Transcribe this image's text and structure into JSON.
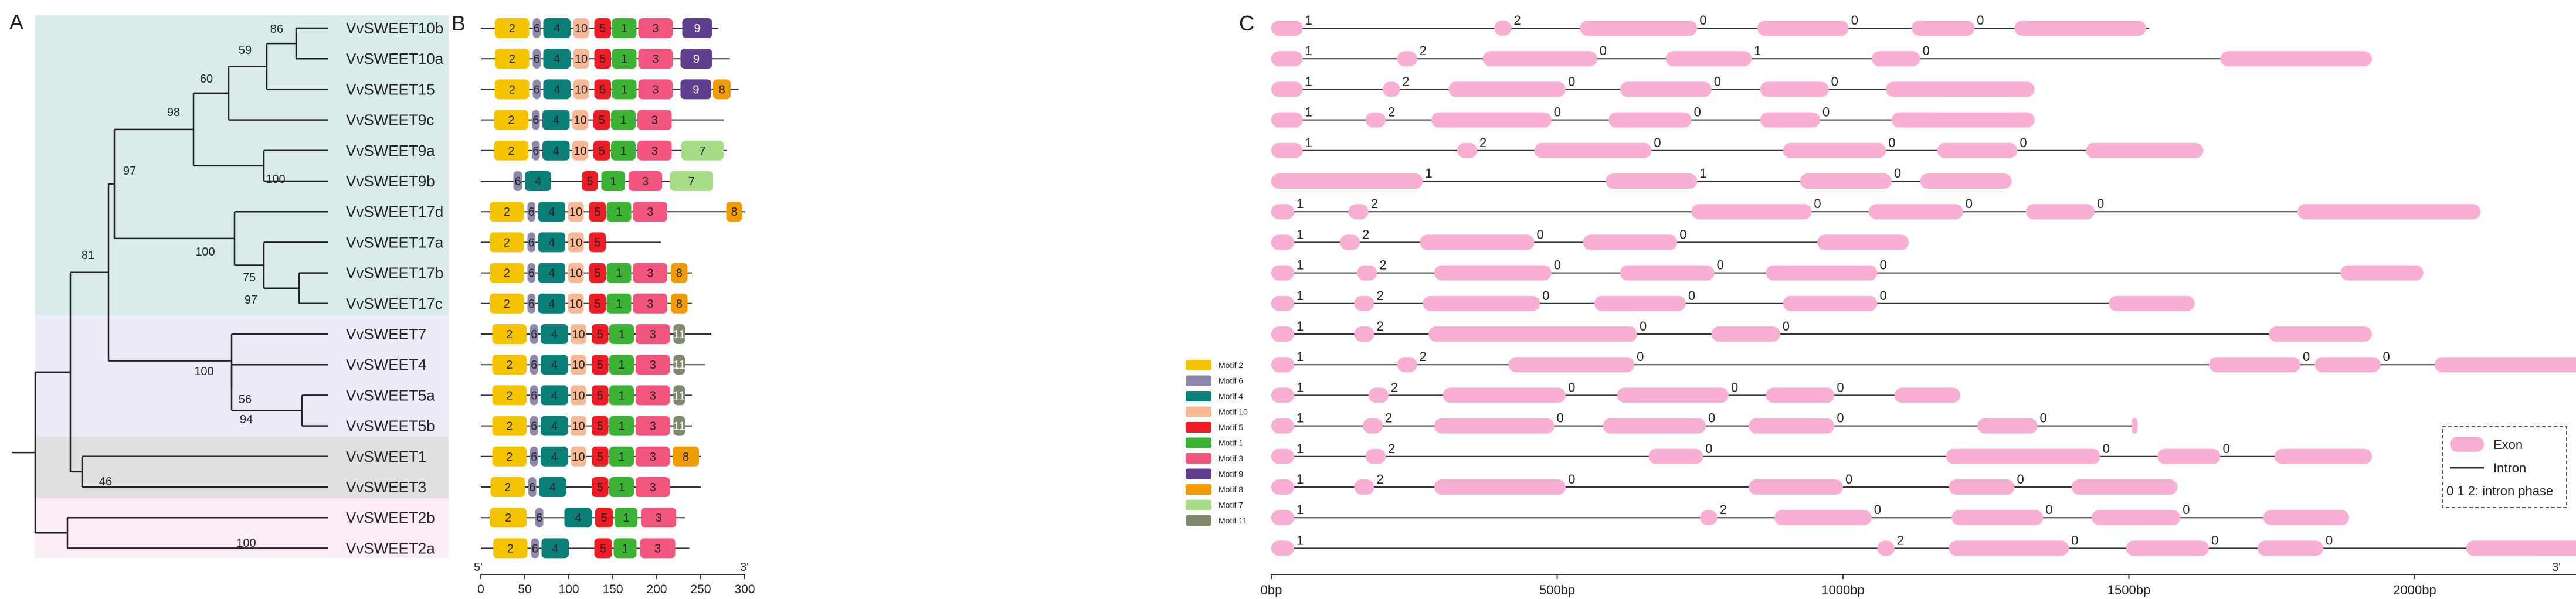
{
  "panels": {
    "a": "A",
    "b": "B",
    "c": "C"
  },
  "colors": {
    "cladeTeal": "#daebeb",
    "cladeBlue": "#ececf8",
    "cladeGray": "#e0e0e0",
    "cladePink": "#fbecf5",
    "exon": "#f9afd4",
    "intron": "#333333"
  },
  "tree": {
    "leaves": [
      "VvSWEET10b",
      "VvSWEET10a",
      "VvSWEET15",
      "VvSWEET9c",
      "VvSWEET9a",
      "VvSWEET9b",
      "VvSWEET17d",
      "VvSWEET17a",
      "VvSWEET17b",
      "VvSWEET17c",
      "VvSWEET7",
      "VvSWEET4",
      "VvSWEET5a",
      "VvSWEET5b",
      "VvSWEET1",
      "VvSWEET3",
      "VvSWEET2b",
      "VvSWEET2a"
    ],
    "bootstraps": [
      "86",
      "59",
      "60",
      "98",
      "100",
      "97",
      "100",
      "75",
      "97",
      "81",
      "100",
      "56",
      "94",
      "46",
      "100"
    ]
  },
  "motif_legend": [
    {
      "id": "2",
      "label": "Motif 2",
      "color": "#f5c400"
    },
    {
      "id": "6",
      "label": "Motif 6",
      "color": "#8e88ad"
    },
    {
      "id": "4",
      "label": "Motif 4",
      "color": "#0a7f78"
    },
    {
      "id": "10",
      "label": "Motif 10",
      "color": "#f7b896"
    },
    {
      "id": "5",
      "label": "Motif 5",
      "color": "#ee1c24"
    },
    {
      "id": "1",
      "label": "Motif 1",
      "color": "#3db335"
    },
    {
      "id": "3",
      "label": "Motif 3",
      "color": "#f2557d"
    },
    {
      "id": "9",
      "label": "Motif 9",
      "color": "#5f3f8d"
    },
    {
      "id": "8",
      "label": "Motif 8",
      "color": "#f29b00"
    },
    {
      "id": "7",
      "label": "Motif 7",
      "color": "#a6dc85"
    },
    {
      "id": "11",
      "label": "Motif 11",
      "color": "#7f8a6c"
    }
  ],
  "motif_axis": {
    "ticks": [
      "0",
      "50",
      "100",
      "150",
      "200",
      "250",
      "300"
    ],
    "five": "5'",
    "three": "3'"
  },
  "motifs": [
    {
      "len": 270,
      "m": [
        [
          16,
          55,
          "2"
        ],
        [
          59,
          68,
          "6"
        ],
        [
          71,
          102,
          "4"
        ],
        [
          105,
          123,
          "10"
        ],
        [
          129,
          148,
          "5"
        ],
        [
          149,
          177,
          "1"
        ],
        [
          179,
          218,
          "3"
        ],
        [
          229,
          263,
          "9"
        ]
      ]
    },
    {
      "len": 283,
      "m": [
        [
          16,
          55,
          "2"
        ],
        [
          59,
          68,
          "6"
        ],
        [
          71,
          102,
          "4"
        ],
        [
          105,
          123,
          "10"
        ],
        [
          129,
          148,
          "5"
        ],
        [
          149,
          177,
          "1"
        ],
        [
          179,
          218,
          "3"
        ],
        [
          227,
          263,
          "9"
        ]
      ]
    },
    {
      "len": 293,
      "m": [
        [
          16,
          55,
          "2"
        ],
        [
          59,
          68,
          "6"
        ],
        [
          71,
          102,
          "4"
        ],
        [
          105,
          123,
          "10"
        ],
        [
          129,
          148,
          "5"
        ],
        [
          149,
          177,
          "1"
        ],
        [
          179,
          218,
          "3"
        ],
        [
          227,
          262,
          "9"
        ],
        [
          264,
          284,
          "8"
        ]
      ]
    },
    {
      "len": 276,
      "m": [
        [
          15,
          54,
          "2"
        ],
        [
          58,
          67,
          "6"
        ],
        [
          70,
          101,
          "4"
        ],
        [
          104,
          122,
          "10"
        ],
        [
          128,
          147,
          "5"
        ],
        [
          148,
          176,
          "1"
        ],
        [
          178,
          217,
          "3"
        ]
      ]
    },
    {
      "len": 280,
      "m": [
        [
          15,
          54,
          "2"
        ],
        [
          58,
          67,
          "6"
        ],
        [
          70,
          101,
          "4"
        ],
        [
          104,
          122,
          "10"
        ],
        [
          128,
          147,
          "5"
        ],
        [
          148,
          176,
          "1"
        ],
        [
          178,
          217,
          "3"
        ],
        [
          228,
          276,
          "7"
        ]
      ]
    },
    {
      "len": 263,
      "m": [
        [
          37,
          47,
          "6"
        ],
        [
          50,
          80,
          "4"
        ],
        [
          115,
          133,
          "5"
        ],
        [
          137,
          164,
          "1"
        ],
        [
          168,
          206,
          "3"
        ],
        [
          215,
          264,
          "7"
        ]
      ]
    },
    {
      "len": 300,
      "m": [
        [
          10,
          49,
          "2"
        ],
        [
          53,
          62,
          "6"
        ],
        [
          65,
          96,
          "4"
        ],
        [
          99,
          117,
          "10"
        ],
        [
          123,
          142,
          "5"
        ],
        [
          143,
          171,
          "1"
        ],
        [
          173,
          212,
          "3"
        ],
        [
          279,
          297,
          "8"
        ]
      ]
    },
    {
      "len": 205,
      "m": [
        [
          10,
          49,
          "2"
        ],
        [
          53,
          62,
          "6"
        ],
        [
          65,
          96,
          "4"
        ],
        [
          99,
          117,
          "10"
        ],
        [
          123,
          142,
          "5"
        ]
      ]
    },
    {
      "len": 240,
      "m": [
        [
          10,
          49,
          "2"
        ],
        [
          53,
          62,
          "6"
        ],
        [
          65,
          96,
          "4"
        ],
        [
          99,
          117,
          "10"
        ],
        [
          123,
          142,
          "5"
        ],
        [
          143,
          171,
          "1"
        ],
        [
          173,
          212,
          "3"
        ],
        [
          216,
          235,
          "8"
        ]
      ]
    },
    {
      "len": 240,
      "m": [
        [
          10,
          49,
          "2"
        ],
        [
          53,
          62,
          "6"
        ],
        [
          65,
          96,
          "4"
        ],
        [
          99,
          117,
          "10"
        ],
        [
          123,
          142,
          "5"
        ],
        [
          143,
          171,
          "1"
        ],
        [
          173,
          212,
          "3"
        ],
        [
          216,
          235,
          "8"
        ]
      ]
    },
    {
      "len": 262,
      "m": [
        [
          13,
          52,
          "2"
        ],
        [
          56,
          65,
          "6"
        ],
        [
          68,
          99,
          "4"
        ],
        [
          102,
          120,
          "10"
        ],
        [
          126,
          145,
          "5"
        ],
        [
          146,
          174,
          "1"
        ],
        [
          176,
          215,
          "3"
        ],
        [
          219,
          232,
          "11"
        ]
      ]
    },
    {
      "len": 255,
      "m": [
        [
          13,
          52,
          "2"
        ],
        [
          56,
          65,
          "6"
        ],
        [
          68,
          99,
          "4"
        ],
        [
          102,
          120,
          "10"
        ],
        [
          126,
          145,
          "5"
        ],
        [
          146,
          174,
          "1"
        ],
        [
          176,
          215,
          "3"
        ],
        [
          219,
          232,
          "11"
        ]
      ]
    },
    {
      "len": 240,
      "m": [
        [
          13,
          52,
          "2"
        ],
        [
          56,
          65,
          "6"
        ],
        [
          68,
          99,
          "4"
        ],
        [
          102,
          120,
          "10"
        ],
        [
          126,
          145,
          "5"
        ],
        [
          146,
          174,
          "1"
        ],
        [
          176,
          215,
          "3"
        ],
        [
          219,
          232,
          "11"
        ]
      ]
    },
    {
      "len": 240,
      "m": [
        [
          13,
          52,
          "2"
        ],
        [
          56,
          65,
          "6"
        ],
        [
          68,
          99,
          "4"
        ],
        [
          102,
          120,
          "10"
        ],
        [
          126,
          145,
          "5"
        ],
        [
          146,
          174,
          "1"
        ],
        [
          176,
          215,
          "3"
        ],
        [
          219,
          232,
          "11"
        ]
      ]
    },
    {
      "len": 250,
      "m": [
        [
          13,
          52,
          "2"
        ],
        [
          56,
          65,
          "6"
        ],
        [
          68,
          99,
          "4"
        ],
        [
          102,
          120,
          "10"
        ],
        [
          126,
          145,
          "5"
        ],
        [
          146,
          174,
          "1"
        ],
        [
          176,
          215,
          "3"
        ],
        [
          218,
          248,
          "8"
        ]
      ]
    },
    {
      "len": 250,
      "m": [
        [
          11,
          50,
          "2"
        ],
        [
          54,
          63,
          "6"
        ],
        [
          66,
          97,
          "4"
        ],
        [
          126,
          145,
          "5"
        ],
        [
          146,
          174,
          "1"
        ],
        [
          176,
          215,
          "3"
        ]
      ]
    },
    {
      "len": 232,
      "m": [
        [
          10,
          52,
          "2"
        ],
        [
          62,
          71,
          "6"
        ],
        [
          95,
          126,
          "4"
        ],
        [
          130,
          150,
          "5"
        ],
        [
          152,
          178,
          "1"
        ],
        [
          182,
          222,
          "3"
        ]
      ]
    },
    {
      "len": 237,
      "m": [
        [
          14,
          53,
          "2"
        ],
        [
          57,
          66,
          "6"
        ],
        [
          69,
          100,
          "4"
        ],
        [
          129,
          149,
          "5"
        ],
        [
          151,
          177,
          "1"
        ],
        [
          181,
          221,
          "3"
        ]
      ]
    }
  ],
  "gene_legend": {
    "exon": "Exon",
    "intron": "Intron",
    "phase": "0 1 2: intron phase"
  },
  "gene_axis": {
    "ticks": [
      "0bp",
      "500bp",
      "1000bp",
      "1500bp",
      "2000bp"
    ],
    "three": "3'"
  },
  "genes": [
    {
      "len": 1535,
      "ex": [
        [
          0,
          55
        ],
        [
          390,
          420
        ],
        [
          540,
          745
        ],
        [
          850,
          1010
        ],
        [
          1120,
          1230
        ],
        [
          1300,
          1530
        ]
      ],
      "ph": [
        "1",
        "2",
        "0",
        "0",
        "0"
      ]
    },
    {
      "len": 1925,
      "ex": [
        [
          0,
          55
        ],
        [
          220,
          255
        ],
        [
          370,
          570
        ],
        [
          690,
          840
        ],
        [
          1050,
          1135
        ],
        [
          1660,
          1925
        ]
      ],
      "ph": [
        "1",
        "2",
        "0",
        "1",
        "0"
      ]
    },
    {
      "len": 1335,
      "ex": [
        [
          0,
          55
        ],
        [
          195,
          225
        ],
        [
          310,
          515
        ],
        [
          610,
          770
        ],
        [
          855,
          975
        ],
        [
          1075,
          1335
        ]
      ],
      "ph": [
        "1",
        "2",
        "0",
        "0",
        "0"
      ]
    },
    {
      "len": 1335,
      "ex": [
        [
          0,
          55
        ],
        [
          165,
          200
        ],
        [
          280,
          490
        ],
        [
          590,
          735
        ],
        [
          855,
          960
        ],
        [
          1085,
          1335
        ]
      ],
      "ph": [
        "1",
        "2",
        "0",
        "0",
        "0"
      ]
    },
    {
      "len": 1630,
      "ex": [
        [
          0,
          55
        ],
        [
          325,
          360
        ],
        [
          460,
          665
        ],
        [
          895,
          1075
        ],
        [
          1165,
          1305
        ],
        [
          1425,
          1630
        ]
      ],
      "ph": [
        "1",
        "2",
        "0",
        "0",
        "0"
      ]
    },
    {
      "len": 1295,
      "ex": [
        [
          0,
          265
        ],
        [
          585,
          745
        ],
        [
          925,
          1085
        ],
        [
          1135,
          1295
        ]
      ],
      "ph": [
        "1",
        "1",
        "0"
      ]
    },
    {
      "len": 2115,
      "ex": [
        [
          0,
          40
        ],
        [
          135,
          170
        ],
        [
          735,
          945
        ],
        [
          1045,
          1210
        ],
        [
          1320,
          1440
        ],
        [
          1795,
          2115
        ]
      ],
      "ph": [
        "1",
        "2",
        "0",
        "0",
        "0"
      ]
    },
    {
      "len": 1115,
      "ex": [
        [
          0,
          40
        ],
        [
          120,
          155
        ],
        [
          260,
          460
        ],
        [
          545,
          710
        ],
        [
          955,
          1115
        ]
      ],
      "ph": [
        "1",
        "2",
        "0",
        "0"
      ]
    },
    {
      "len": 2015,
      "ex": [
        [
          0,
          40
        ],
        [
          150,
          185
        ],
        [
          285,
          490
        ],
        [
          610,
          775
        ],
        [
          865,
          1060
        ],
        [
          1870,
          2015
        ]
      ],
      "ph": [
        "1",
        "2",
        "0",
        "0",
        "0"
      ]
    },
    {
      "len": 1615,
      "ex": [
        [
          0,
          40
        ],
        [
          145,
          180
        ],
        [
          265,
          470
        ],
        [
          565,
          725
        ],
        [
          895,
          1060
        ],
        [
          1465,
          1615
        ]
      ],
      "ph": [
        "1",
        "2",
        "0",
        "0",
        "0"
      ]
    },
    {
      "len": 1925,
      "ex": [
        [
          0,
          40
        ],
        [
          145,
          180
        ],
        [
          275,
          640
        ],
        [
          770,
          890
        ],
        [
          1745,
          1925
        ]
      ],
      "ph": [
        "1",
        "2",
        "0",
        "0"
      ]
    },
    {
      "len": 2310,
      "ex": [
        [
          0,
          40
        ],
        [
          220,
          255
        ],
        [
          415,
          635
        ],
        [
          1640,
          1800
        ],
        [
          1825,
          1940
        ],
        [
          2035,
          2310
        ]
      ],
      "ph": [
        "1",
        "2",
        "0",
        "0",
        "0"
      ]
    },
    {
      "len": 1205,
      "ex": [
        [
          0,
          40
        ],
        [
          170,
          205
        ],
        [
          300,
          515
        ],
        [
          605,
          800
        ],
        [
          865,
          985
        ],
        [
          1090,
          1205
        ]
      ],
      "ph": [
        "1",
        "2",
        "0",
        "0",
        "0"
      ]
    },
    {
      "len": 1515,
      "ex": [
        [
          0,
          40
        ],
        [
          160,
          195
        ],
        [
          285,
          495
        ],
        [
          580,
          760
        ],
        [
          835,
          985
        ],
        [
          1235,
          1340
        ],
        [
          1505,
          1515
        ]
      ],
      "ph": [
        "1",
        "2",
        "0",
        "0",
        "0",
        "0"
      ]
    },
    {
      "len": 1925,
      "ex": [
        [
          0,
          40
        ],
        [
          165,
          200
        ],
        [
          660,
          755
        ],
        [
          1180,
          1450
        ],
        [
          1550,
          1660
        ],
        [
          1755,
          1925
        ]
      ],
      "ph": [
        "1",
        "2",
        "0",
        "0",
        "0"
      ]
    },
    {
      "len": 1585,
      "ex": [
        [
          0,
          40
        ],
        [
          145,
          180
        ],
        [
          285,
          515
        ],
        [
          835,
          1000
        ],
        [
          1185,
          1300
        ],
        [
          1400,
          1585
        ]
      ],
      "ph": [
        "1",
        "2",
        "0",
        "0",
        "0"
      ]
    },
    {
      "len": 1885,
      "ex": [
        [
          0,
          40
        ],
        [
          750,
          780
        ],
        [
          880,
          1050
        ],
        [
          1190,
          1350
        ],
        [
          1435,
          1590
        ],
        [
          1735,
          1885
        ]
      ],
      "ph": [
        "1",
        "2",
        "0",
        "0",
        "0"
      ]
    },
    {
      "len": 2300,
      "ex": [
        [
          0,
          40
        ],
        [
          1060,
          1090
        ],
        [
          1185,
          1395
        ],
        [
          1495,
          1640
        ],
        [
          1725,
          1840
        ],
        [
          2090,
          2300
        ]
      ],
      "ph": [
        "1",
        "2",
        "0",
        "0",
        "0"
      ]
    }
  ]
}
